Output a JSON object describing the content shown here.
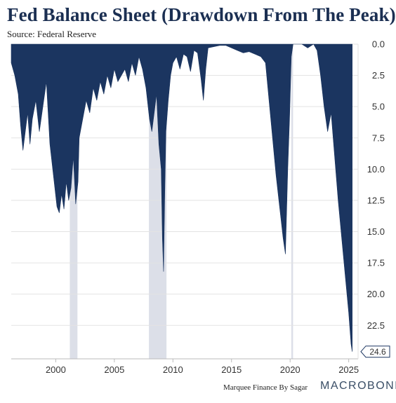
{
  "header": {
    "title": "Fed Balance Sheet (Drawdown From The Peak)",
    "source": "Source: Federal Reserve"
  },
  "footer": {
    "credit": "Marquee Finance By Sagar",
    "brand": "MACROBOND"
  },
  "chart_data": {
    "type": "area",
    "title": "Fed Balance Sheet (Drawdown From The Peak)",
    "xlabel": "",
    "ylabel": "",
    "xlim": [
      1996.2,
      2025.8
    ],
    "ylim": [
      0,
      24.6
    ],
    "y_axis_side": "right",
    "y_axis_inverted": true,
    "grid": true,
    "x_ticks": [
      2000,
      2005,
      2010,
      2015,
      2020,
      2025
    ],
    "y_ticks": [
      0.0,
      2.5,
      5.0,
      7.5,
      10.0,
      12.5,
      15.0,
      17.5,
      20.0,
      22.5
    ],
    "last_value_label": "24.6",
    "colors": {
      "area": "#1b3560",
      "recession": "#dcdfe8",
      "grid": "#e3e3e3"
    },
    "recession_bands": [
      [
        2001.2,
        2001.85
      ],
      [
        2007.95,
        2009.45
      ],
      [
        2020.1,
        2020.25
      ]
    ],
    "series": [
      {
        "x": [
          1996.2,
          1996.5,
          1996.8,
          1997.0,
          1997.2,
          1997.4,
          1997.6,
          1997.8,
          1998.0,
          1998.3,
          1998.6,
          1998.9,
          1999.2,
          1999.5,
          1999.8,
          2000.1,
          2000.3,
          2000.5,
          2000.7,
          2000.9,
          2001.1,
          2001.3,
          2001.5,
          2001.7,
          2001.9,
          2002.0,
          2002.3,
          2002.6,
          2002.9,
          2003.2,
          2003.5,
          2003.8,
          2004.1,
          2004.4,
          2004.7,
          2005.0,
          2005.3,
          2005.6,
          2005.9,
          2006.2,
          2006.5,
          2006.8,
          2007.1,
          2007.4,
          2007.7,
          2008.0,
          2008.2,
          2008.4,
          2008.6,
          2008.8,
          2009.0,
          2009.1,
          2009.2,
          2009.3,
          2009.4,
          2009.6,
          2009.8,
          2010.0,
          2010.3,
          2010.6,
          2010.9,
          2011.2,
          2011.5,
          2011.8,
          2012.1,
          2012.4,
          2012.6,
          2012.8,
          2013.0,
          2013.5,
          2014.0,
          2014.5,
          2015.0,
          2015.5,
          2016.0,
          2016.5,
          2017.0,
          2017.5,
          2017.9,
          2018.2,
          2018.5,
          2018.8,
          2019.1,
          2019.4,
          2019.6,
          2019.8,
          2019.95,
          2020.1,
          2020.25,
          2020.5,
          2021.0,
          2021.5,
          2022.0,
          2022.3,
          2022.6,
          2022.9,
          2023.2,
          2023.5,
          2023.8,
          2024.1,
          2024.4,
          2024.7,
          2025.0,
          2025.2,
          2025.3
        ],
        "values": [
          1.5,
          2.5,
          4.0,
          6.5,
          8.5,
          7.0,
          5.5,
          8.0,
          6.0,
          4.5,
          7.0,
          5.0,
          3.0,
          8.0,
          10.5,
          13.0,
          13.5,
          12.0,
          13.2,
          11.0,
          12.5,
          11.5,
          9.0,
          12.8,
          11.0,
          7.5,
          6.0,
          4.5,
          5.5,
          3.5,
          4.5,
          3.0,
          4.0,
          2.5,
          3.5,
          2.0,
          3.0,
          2.5,
          2.0,
          3.0,
          1.5,
          2.5,
          1.0,
          2.0,
          3.5,
          6.0,
          7.0,
          5.5,
          4.0,
          8.0,
          10.0,
          15.5,
          18.2,
          12.0,
          7.0,
          4.5,
          2.5,
          1.5,
          1.0,
          2.0,
          0.8,
          1.0,
          2.2,
          0.5,
          0.7,
          2.8,
          4.5,
          2.0,
          0.3,
          0.2,
          0.1,
          0.1,
          0.3,
          0.5,
          0.7,
          0.6,
          0.8,
          1.0,
          1.5,
          4.5,
          7.5,
          10.5,
          13.0,
          15.5,
          16.8,
          10.0,
          6.0,
          1.0,
          0.0,
          0.0,
          0.0,
          0.3,
          0.0,
          0.5,
          2.5,
          5.0,
          7.0,
          5.5,
          9.0,
          12.5,
          15.5,
          18.5,
          21.5,
          24.0,
          24.6
        ]
      }
    ]
  }
}
